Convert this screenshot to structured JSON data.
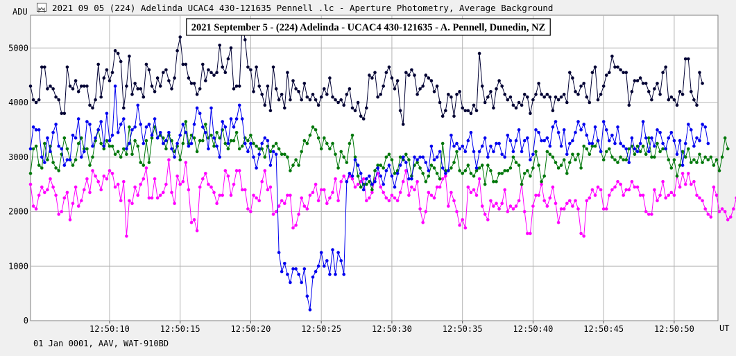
{
  "window": {
    "title": "2021 09 05 (224) Adelinda UCAC4 430-121635 Pennell .lc - Aperture Photometry, Average Background",
    "icon": "lightcurve-app-icon"
  },
  "footer": {
    "text": "01 Jan 0001, AAV, WAT-910BD"
  },
  "chart_data": {
    "type": "line",
    "title": "2021 September 5 - (224) Adelinda - UCAC4 430-121635 - A. Pennell, Dunedin, NZ",
    "xlabel": "UT",
    "ylabel": "ADU",
    "ylim": [
      0,
      5600
    ],
    "xlim": [
      "12:50:04.4",
      "12:50:53.1"
    ],
    "yticks": [
      0,
      1000,
      2000,
      3000,
      4000,
      5000
    ],
    "xticks": [
      "12:50:10",
      "12:50:15",
      "12:50:20",
      "12:50:25",
      "12:50:30",
      "12:50:35",
      "12:50:40",
      "12:50:45",
      "12:50:50"
    ],
    "grid": true,
    "point_step_s": 0.2,
    "series": [
      {
        "color": "#000033",
        "values": [
          4300,
          4050,
          4000,
          4050,
          4650,
          4650,
          4250,
          4300,
          4250,
          4100,
          4050,
          3800,
          3800,
          4650,
          4300,
          4250,
          4400,
          4200,
          4300,
          4300,
          4300,
          3950,
          3900,
          4050,
          4700,
          4100,
          4450,
          4600,
          4400,
          4550,
          4950,
          4900,
          4750,
          3900,
          4300,
          4850,
          4150,
          4350,
          4250,
          4250,
          4100,
          4700,
          4600,
          4300,
          4200,
          4450,
          4300,
          4550,
          4600,
          4400,
          4250,
          4450,
          4950,
          5200,
          4700,
          4700,
          4450,
          4350,
          4350,
          4150,
          4250,
          4700,
          4400,
          4600,
          4550,
          4500,
          4550,
          5050,
          4650,
          4550,
          4800,
          5000,
          4250,
          4300,
          4300,
          5450,
          5150,
          4650,
          4600,
          4200,
          4650,
          4300,
          4150,
          3950,
          4300,
          3850,
          4650,
          4250,
          4050,
          4150,
          3900,
          4550,
          4050,
          4400,
          4250,
          4200,
          4050,
          4350,
          4100,
          4050,
          4150,
          4050,
          3950,
          4100,
          4250,
          4150,
          4450,
          4100,
          4050,
          4000,
          4050,
          3950,
          4150,
          4250,
          3900,
          3850,
          4000,
          3750,
          3700,
          3900,
          4500,
          4450,
          4550,
          4100,
          4150,
          4300,
          4550,
          4650,
          4450,
          4250,
          4400,
          3850,
          3600,
          4550,
          4500,
          4600,
          4500,
          4150,
          4250,
          4300,
          4500,
          4450,
          4400,
          4200,
          4300,
          4000,
          3750,
          3850,
          4150,
          4100,
          3750,
          4150,
          4200,
          3900,
          3850,
          3850,
          3800,
          3950,
          3850,
          4900,
          4300,
          4000,
          4100,
          4200,
          3900,
          4250,
          4400,
          4300,
          4150,
          4050,
          4100,
          3950,
          3900,
          4000,
          3950,
          4150,
          4100,
          3800,
          4050,
          4150,
          4350,
          4150,
          4100,
          4150,
          4100,
          3850,
          4100,
          4050,
          4100,
          4150,
          4000,
          4550,
          4450,
          4200,
          4150,
          4300,
          4350,
          4100,
          4000,
          4550,
          4650,
          4050,
          4150,
          4300,
          4500,
          4550,
          4850,
          4650,
          4650,
          4600,
          4550,
          4550,
          3950,
          4200,
          4400,
          4400,
          4450,
          4350,
          4350,
          4200,
          4050,
          4250,
          4350,
          4150,
          4550,
          4650,
          4050,
          4100,
          4050,
          3950,
          4200,
          4150,
          4800,
          4800,
          4200,
          4050,
          3950,
          4550,
          4350
        ]
      },
      {
        "color": "#0000ee",
        "values": [
          3150,
          3550,
          3500,
          3500,
          3000,
          2900,
          3350,
          3100,
          3450,
          3600,
          3200,
          3150,
          2850,
          2950,
          2950,
          3400,
          3350,
          3700,
          3000,
          3100,
          3650,
          3600,
          3200,
          3350,
          3500,
          3650,
          3200,
          3800,
          3300,
          3400,
          4300,
          3450,
          3600,
          3700,
          3150,
          3250,
          3500,
          3550,
          3950,
          3600,
          3250,
          3550,
          3600,
          3400,
          3700,
          3350,
          3450,
          3250,
          3300,
          3450,
          3150,
          3000,
          3250,
          3400,
          3600,
          3450,
          3200,
          3250,
          3600,
          3900,
          3800,
          3550,
          3450,
          3150,
          3900,
          3350,
          3200,
          3000,
          3650,
          3550,
          3250,
          3700,
          3550,
          3700,
          3950,
          3700,
          3250,
          3100,
          3250,
          3000,
          2800,
          3050,
          3250,
          3350,
          3300,
          2850,
          3100,
          3050,
          1250,
          900,
          1050,
          850,
          700,
          950,
          950,
          850,
          700,
          950,
          450,
          200,
          800,
          900,
          1000,
          1250,
          1000,
          1100,
          850,
          1300,
          850,
          1250,
          1100,
          850,
          2550,
          2700,
          2650,
          2950,
          2850,
          2700,
          2400,
          2600,
          2650,
          2500,
          2550,
          2800,
          2650,
          2500,
          2750,
          2850,
          2650,
          2450,
          2700,
          2850,
          3000,
          2900,
          2600,
          2600,
          3000,
          2950,
          3000,
          3000,
          2900,
          2750,
          3200,
          2950,
          3000,
          3100,
          2800,
          2700,
          2750,
          3400,
          3200,
          3250,
          3150,
          3200,
          3100,
          3300,
          3450,
          3100,
          2800,
          3100,
          3200,
          3350,
          3000,
          3200,
          3100,
          3250,
          3250,
          3050,
          3000,
          3400,
          3300,
          3100,
          3300,
          3500,
          3100,
          3300,
          3350,
          2950,
          3050,
          3500,
          3450,
          3300,
          3300,
          3350,
          3200,
          3550,
          3650,
          3450,
          3200,
          3500,
          3050,
          3250,
          3300,
          3450,
          3650,
          3500,
          3600,
          3400,
          3250,
          3250,
          3550,
          3300,
          3100,
          3650,
          3500,
          3300,
          3400,
          3250,
          3550,
          3250,
          3200,
          3150,
          2900,
          3350,
          3150,
          3100,
          3250,
          3650,
          3350,
          3100,
          3350,
          3200,
          3500,
          3450,
          3250,
          3150,
          3350,
          3450,
          3300,
          3050,
          3300,
          2850,
          3250,
          3600,
          3500,
          3200,
          3350,
          3300,
          3600,
          3550,
          3250
        ]
      },
      {
        "color": "#00770a",
        "values": [
          2700,
          3150,
          3200,
          2850,
          2800,
          3250,
          2950,
          3200,
          2900,
          2800,
          2750,
          3050,
          3350,
          3150,
          2950,
          2850,
          2950,
          3250,
          3350,
          3150,
          3150,
          2850,
          3000,
          3300,
          3500,
          3250,
          3150,
          3300,
          3200,
          3200,
          3050,
          3100,
          3000,
          3150,
          3050,
          3550,
          3050,
          3300,
          3200,
          2900,
          2850,
          3300,
          2900,
          3350,
          3550,
          3350,
          3400,
          3350,
          3150,
          3400,
          3300,
          3100,
          3200,
          2950,
          3250,
          3650,
          3250,
          3400,
          3350,
          3100,
          3300,
          3300,
          3600,
          3350,
          3400,
          3200,
          3450,
          3350,
          3500,
          3250,
          3150,
          3300,
          3300,
          3450,
          3150,
          3200,
          3350,
          3300,
          3400,
          3250,
          3200,
          3150,
          3150,
          3000,
          3200,
          3100,
          3200,
          3250,
          3150,
          3050,
          3050,
          3000,
          2750,
          2850,
          2950,
          2850,
          3100,
          3300,
          3250,
          3400,
          3550,
          3500,
          3350,
          3150,
          3350,
          3250,
          3150,
          3250,
          3050,
          2800,
          3100,
          3000,
          2900,
          3250,
          3400,
          3000,
          2650,
          2450,
          2500,
          2500,
          2550,
          2400,
          2750,
          2850,
          2850,
          2800,
          3000,
          3050,
          2950,
          2700,
          2750,
          3000,
          2950,
          3050,
          2950,
          2650,
          2850,
          2900,
          2800,
          2700,
          2550,
          2650,
          2850,
          2800,
          2700,
          2600,
          3250,
          2750,
          2750,
          2800,
          2900,
          3100,
          2750,
          2700,
          2750,
          2850,
          2700,
          2650,
          2750,
          2800,
          2850,
          2500,
          2850,
          2750,
          2550,
          2550,
          2700,
          2700,
          2750,
          2750,
          2800,
          3000,
          2900,
          2850,
          2500,
          2700,
          2750,
          2650,
          2800,
          3100,
          2850,
          2550,
          2650,
          3100,
          3050,
          3000,
          2900,
          2800,
          2850,
          2950,
          2700,
          2900,
          3050,
          2950,
          3050,
          2800,
          3200,
          3150,
          3050,
          3200,
          3200,
          3300,
          3100,
          2950,
          3100,
          3150,
          3000,
          2950,
          2900,
          3000,
          2950,
          2950,
          3150,
          3200,
          3050,
          3200,
          3100,
          3200,
          3050,
          3350,
          3000,
          3000,
          3250,
          3100,
          3150,
          3150,
          2950,
          2800,
          2950,
          2650,
          2850,
          3100,
          3000,
          3150,
          2900,
          2950,
          2900,
          3050,
          2900,
          3000,
          2950,
          3000,
          2850,
          2950,
          2750,
          3000,
          3350,
          3150
        ]
      },
      {
        "color": "#ff00ff",
        "values": [
          2500,
          2100,
          2050,
          2300,
          2450,
          2350,
          2400,
          2600,
          2450,
          2300,
          1950,
          2000,
          2250,
          2350,
          1850,
          2150,
          2450,
          2100,
          2200,
          2400,
          2600,
          2350,
          2750,
          2650,
          2550,
          2400,
          2650,
          2600,
          2750,
          2700,
          2450,
          2500,
          2200,
          2550,
          1550,
          2200,
          2150,
          2450,
          2300,
          2500,
          2600,
          2800,
          2250,
          2250,
          2600,
          2250,
          2300,
          2350,
          2500,
          2950,
          2350,
          2150,
          2650,
          2500,
          2550,
          2900,
          2400,
          1800,
          1850,
          1650,
          2450,
          2600,
          2700,
          2500,
          2450,
          2350,
          2150,
          2300,
          2300,
          2750,
          2650,
          2300,
          2500,
          2750,
          2750,
          2400,
          2400,
          2050,
          2000,
          2300,
          2250,
          2200,
          2550,
          2750,
          2400,
          2450,
          1950,
          2000,
          2100,
          2200,
          2150,
          2300,
          2300,
          1700,
          1750,
          1950,
          2250,
          2100,
          2050,
          2300,
          2350,
          2500,
          2200,
          2400,
          2400,
          2150,
          2250,
          2350,
          2600,
          2200,
          2550,
          2650,
          2550,
          2650,
          2600,
          2450,
          2500,
          2550,
          2600,
          2200,
          2250,
          2350,
          2600,
          2700,
          2450,
          2350,
          2250,
          2200,
          2300,
          2250,
          2200,
          2350,
          2550,
          2750,
          2300,
          2450,
          2400,
          2550,
          2050,
          1800,
          2000,
          2350,
          2300,
          2250,
          2450,
          2450,
          2600,
          2650,
          2100,
          2350,
          2200,
          2000,
          1750,
          1850,
          1700,
          2450,
          2350,
          2400,
          2300,
          2600,
          2100,
          1950,
          1850,
          2200,
          2100,
          2150,
          2050,
          2150,
          2400,
          2000,
          2100,
          2050,
          2100,
          2200,
          2500,
          2000,
          1600,
          1600,
          2100,
          2300,
          2300,
          2500,
          2200,
          2100,
          2250,
          2450,
          2150,
          1800,
          2050,
          2050,
          2150,
          2200,
          2100,
          2200,
          2050,
          1600,
          1550,
          2200,
          2250,
          2400,
          2300,
          2450,
          2400,
          2050,
          2050,
          2300,
          2400,
          2450,
          2550,
          2500,
          2300,
          2400,
          2400,
          2550,
          2450,
          2450,
          2300,
          2300,
          2000,
          1950,
          1950,
          2400,
          2200,
          2300,
          2550,
          2250,
          2300,
          2350,
          2300,
          2650,
          2450,
          2700,
          2500,
          2700,
          2500,
          2550,
          2300,
          2250,
          2200,
          2050,
          1950,
          1900,
          2450,
          2300,
          2000,
          2050,
          2000,
          1850,
          1900,
          2050,
          2250,
          2250,
          2000,
          2050,
          2150,
          2200
        ]
      }
    ]
  }
}
